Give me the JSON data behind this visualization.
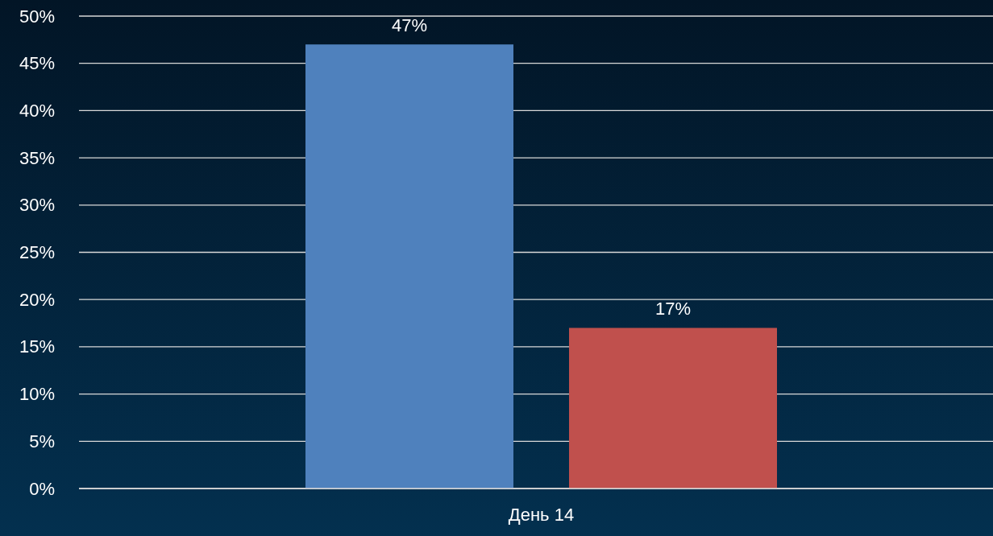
{
  "chart_data": {
    "type": "bar",
    "categories": [
      "День 14"
    ],
    "series": [
      {
        "color": "#4f81bd",
        "values": [
          47
        ],
        "value_labels": [
          "47%"
        ]
      },
      {
        "color": "#c0504d",
        "values": [
          17
        ],
        "value_labels": [
          "17%"
        ]
      }
    ],
    "ylim": [
      0,
      50
    ],
    "yticks": [
      {
        "value": 0,
        "label": "0%"
      },
      {
        "value": 5,
        "label": "5%"
      },
      {
        "value": 10,
        "label": "10%"
      },
      {
        "value": 15,
        "label": "15%"
      },
      {
        "value": 20,
        "label": "20%"
      },
      {
        "value": 25,
        "label": "25%"
      },
      {
        "value": 30,
        "label": "30%"
      },
      {
        "value": 35,
        "label": "35%"
      },
      {
        "value": 40,
        "label": "40%"
      },
      {
        "value": 45,
        "label": "45%"
      },
      {
        "value": 50,
        "label": "50%"
      }
    ],
    "grid": "y"
  }
}
